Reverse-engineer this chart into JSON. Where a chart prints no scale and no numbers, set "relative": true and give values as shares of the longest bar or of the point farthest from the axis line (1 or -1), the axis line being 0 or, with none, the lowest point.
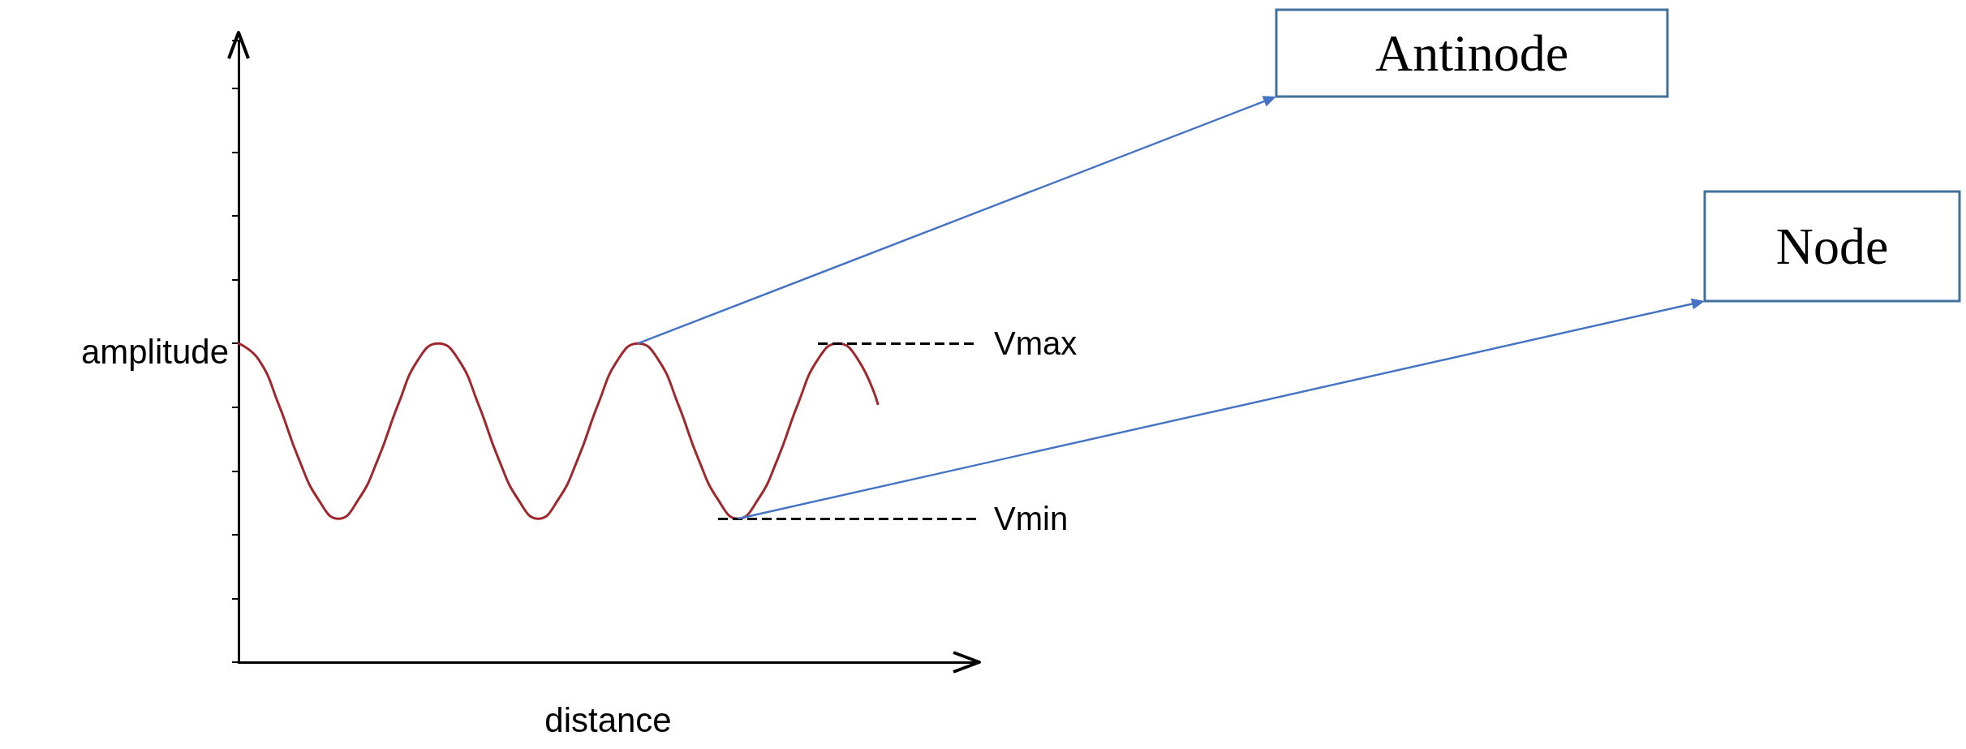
{
  "chart_data": {
    "type": "line",
    "relative": true,
    "xlabel": "distance",
    "ylabel": "amplitude",
    "marker": "none",
    "line_style": "solid",
    "categories": [
      null,
      null,
      null,
      null,
      null,
      null,
      null,
      null,
      null,
      null,
      null,
      null,
      null,
      null,
      null,
      null,
      null,
      null,
      null,
      null,
      null,
      null,
      null,
      null,
      null,
      null,
      null,
      null,
      null,
      null,
      null,
      null,
      null,
      null,
      null,
      null,
      null,
      null
    ],
    "series": [
      {
        "color": "#a0282d",
        "values": [
          1.0,
          0.95,
          0.81,
          0.64,
          0.51,
          0.45,
          0.51,
          0.64,
          0.81,
          0.95,
          1.0,
          0.95,
          0.81,
          0.64,
          0.51,
          0.45,
          0.51,
          0.64,
          0.81,
          0.95,
          1.0,
          0.95,
          0.81,
          0.64,
          0.51,
          0.45,
          0.51,
          0.64,
          0.81,
          0.95,
          1.0,
          0.95,
          0.81,
          null,
          null,
          null,
          null,
          null
        ]
      }
    ],
    "ref_lines": [
      {
        "axis": "y",
        "value": 1.0,
        "label": "Vmax",
        "color": "#000000",
        "line_style": "dashed"
      },
      {
        "axis": "y",
        "value": 0.45,
        "label": "Vmin",
        "color": "#000000",
        "line_style": "dashed"
      }
    ],
    "annotations": [
      "Antinode",
      "Node"
    ]
  }
}
